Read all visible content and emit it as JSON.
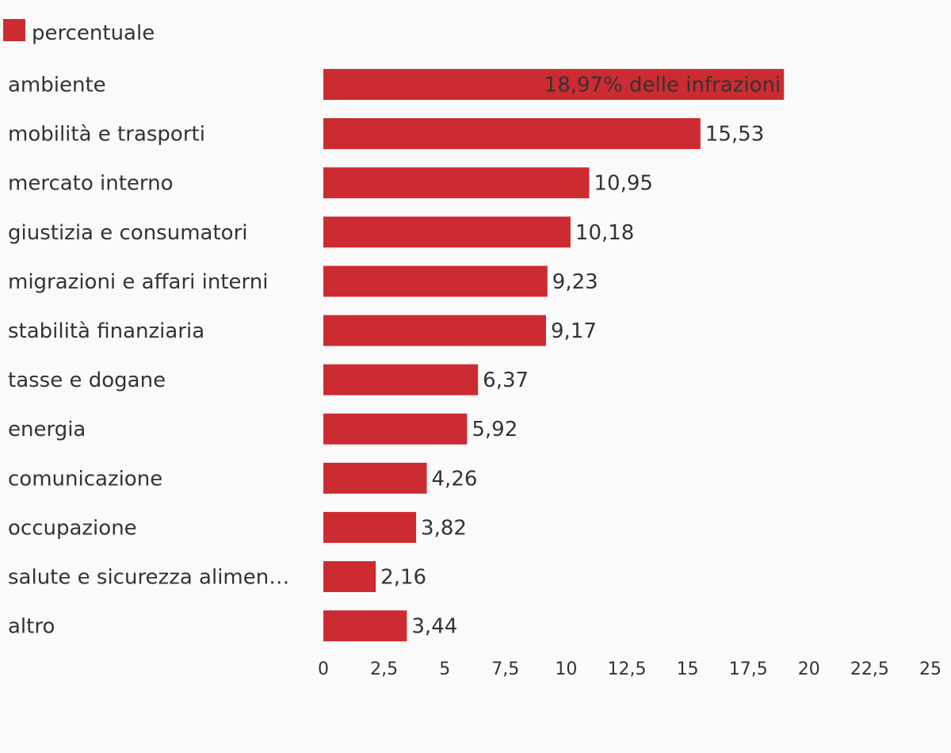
{
  "chart_data": {
    "type": "bar",
    "orientation": "horizontal",
    "categories": [
      "ambiente",
      "mobilità e trasporti",
      "mercato interno",
      "giustizia e consumatori",
      "migrazioni e affari interni",
      "stabilità finanziaria",
      "tasse e dogane",
      "energia",
      "comunicazione",
      "occupazione",
      "salute e sicurezza alimen…",
      "altro"
    ],
    "series": [
      {
        "name": "percentuale",
        "values": [
          18.97,
          15.53,
          10.95,
          10.18,
          9.23,
          9.17,
          6.37,
          5.92,
          4.26,
          3.82,
          2.16,
          3.44
        ],
        "data_labels": [
          "18,97% delle infrazioni",
          "15,53",
          "10,95",
          "10,18",
          "9,23",
          "9,17",
          "6,37",
          "5,92",
          "4,26",
          "3,82",
          "2,16",
          "3,44"
        ],
        "color": "#cc2b31"
      }
    ],
    "xlim": [
      0,
      25
    ],
    "x_ticks": [
      0,
      2.5,
      5,
      7.5,
      10,
      12.5,
      15,
      17.5,
      20,
      22.5,
      25
    ],
    "x_tick_labels": [
      "0",
      "2,5",
      "5",
      "7,5",
      "10",
      "12,5",
      "15",
      "17,5",
      "20",
      "22,5",
      "25"
    ],
    "grid": false,
    "legend_position": "top-left",
    "title": "",
    "xlabel": "",
    "ylabel": ""
  }
}
